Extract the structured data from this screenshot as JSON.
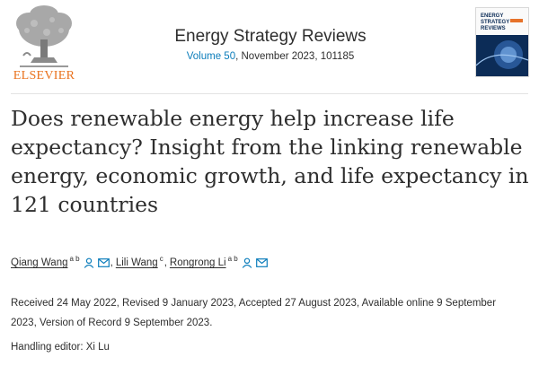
{
  "publisher": {
    "name": "ELSEVIER"
  },
  "journal": {
    "title": "Energy Strategy Reviews",
    "volume": "Volume 50",
    "issue_rest": ", November 2023, 101185"
  },
  "cover": {
    "title_line1": "ENERGY",
    "title_line2": "STRATEGY",
    "title_line3": "REVIEWS",
    "accent": "#e6722a",
    "bg": "#0c2c57"
  },
  "article": {
    "title": "Does renewable energy help increase life expectancy? Insight from the linking renewable energy, economic growth, and life expectancy in 121 countries"
  },
  "authors": [
    {
      "name": "Qiang Wang",
      "sup": "a b"
    },
    {
      "name": "Lili Wang",
      "sup": "c"
    },
    {
      "name": "Rongrong Li",
      "sup": "a b"
    }
  ],
  "author_separator": ",",
  "icons": {
    "person": "person-icon",
    "mail": "mail-icon",
    "color": "#0c7dbb"
  },
  "history": "Received 24 May 2022, Revised 9 January 2023, Accepted 27 August 2023, Available online 9 September 2023, Version of Record 9 September 2023.",
  "handling_editor": "Handling editor: Xi Lu"
}
